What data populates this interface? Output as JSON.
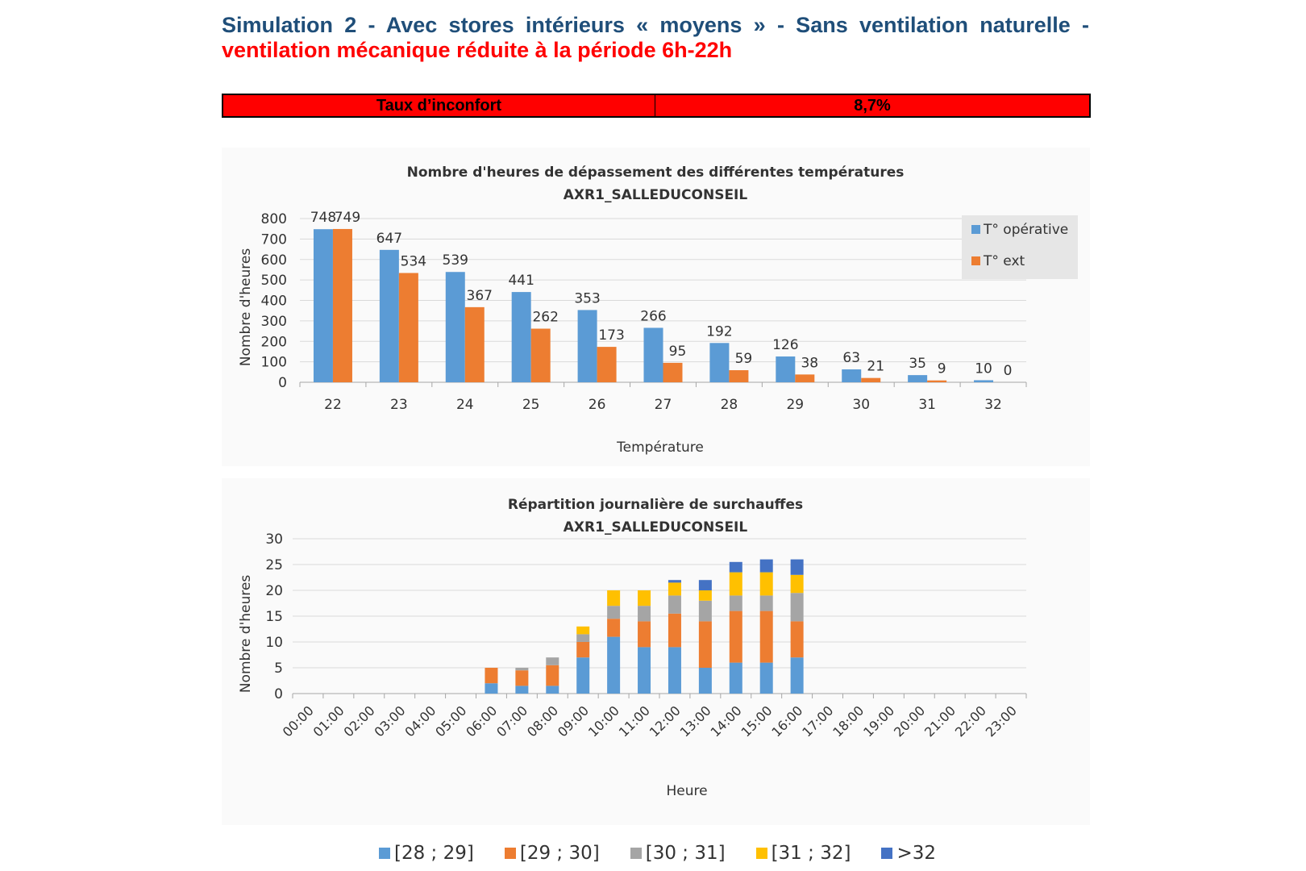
{
  "heading": {
    "line1": "Simulation 2 - Avec stores intérieurs « moyens » - Sans ventilation naturelle -",
    "line2": "ventilation mécanique réduite à la période 6h-22h"
  },
  "discomfort": {
    "label": "Taux d’inconfort",
    "value": "8,7%"
  },
  "colors": {
    "blue": "#5b9bd5",
    "orange": "#ed7d31",
    "gray": "#a5a5a5",
    "yellow": "#ffc000",
    "darkblue": "#4472c4",
    "banner": "#ff0000"
  },
  "chart_data": [
    {
      "type": "bar",
      "title": "Nombre d'heures de dépassement des différentes températures",
      "subtitle": "AXR1_SALLEDUCONSEIL",
      "xlabel": "Température",
      "ylabel": "Nombre d'heures",
      "categories": [
        "22",
        "23",
        "24",
        "25",
        "26",
        "27",
        "28",
        "29",
        "30",
        "31",
        "32"
      ],
      "series": [
        {
          "name": "T° opérative",
          "values": [
            748,
            647,
            539,
            441,
            353,
            266,
            192,
            126,
            63,
            35,
            10
          ]
        },
        {
          "name": "T° ext",
          "values": [
            749,
            534,
            367,
            262,
            173,
            95,
            59,
            38,
            21,
            9,
            0
          ]
        }
      ],
      "ylim": [
        0,
        800
      ],
      "yticks": [
        0,
        100,
        200,
        300,
        400,
        500,
        600,
        700,
        800
      ],
      "grid": true,
      "legend": "top-right",
      "data_labels": true
    },
    {
      "type": "bar",
      "stacked": true,
      "title": "Répartition journalière de surchauffes",
      "subtitle": "AXR1_SALLEDUCONSEIL",
      "xlabel": "Heure",
      "ylabel": "Nombre d'heures",
      "categories": [
        "00:00",
        "01:00",
        "02:00",
        "03:00",
        "04:00",
        "05:00",
        "06:00",
        "07:00",
        "08:00",
        "09:00",
        "10:00",
        "11:00",
        "12:00",
        "13:00",
        "14:00",
        "15:00",
        "16:00",
        "17:00",
        "18:00",
        "19:00",
        "20:00",
        "21:00",
        "22:00",
        "23:00"
      ],
      "series": [
        {
          "name": "[28 ; 29]",
          "values": [
            0,
            0,
            0,
            0,
            0,
            0,
            2,
            1.5,
            1.5,
            7,
            11,
            9,
            9,
            5,
            6,
            6,
            7,
            0,
            0,
            0,
            0,
            0,
            0,
            0
          ]
        },
        {
          "name": "[29 ; 30]",
          "values": [
            0,
            0,
            0,
            0,
            0,
            0,
            3,
            3,
            4,
            3,
            3.5,
            5,
            6.5,
            9,
            10,
            10,
            7,
            0,
            0,
            0,
            0,
            0,
            0,
            0
          ]
        },
        {
          "name": "[30 ; 31]",
          "values": [
            0,
            0,
            0,
            0,
            0,
            0,
            0,
            0.5,
            1.5,
            1.5,
            2.5,
            3,
            3.5,
            4,
            3,
            3,
            5.5,
            0,
            0,
            0,
            0,
            0,
            0,
            0
          ]
        },
        {
          "name": "[31 ; 32]",
          "values": [
            0,
            0,
            0,
            0,
            0,
            0,
            0,
            0,
            0,
            1.5,
            3,
            3,
            2.5,
            2,
            4.5,
            4.5,
            3.5,
            0,
            0,
            0,
            0,
            0,
            0,
            0
          ]
        },
        {
          "name": ">32",
          "values": [
            0,
            0,
            0,
            0,
            0,
            0,
            0,
            0,
            0,
            0,
            0,
            0,
            0.5,
            2,
            2,
            2.5,
            3,
            0,
            0,
            0,
            0,
            0,
            0,
            0
          ]
        }
      ],
      "ylim": [
        0,
        30
      ],
      "yticks": [
        0,
        5,
        10,
        15,
        20,
        25,
        30
      ],
      "grid": true,
      "legend": "bottom"
    }
  ]
}
